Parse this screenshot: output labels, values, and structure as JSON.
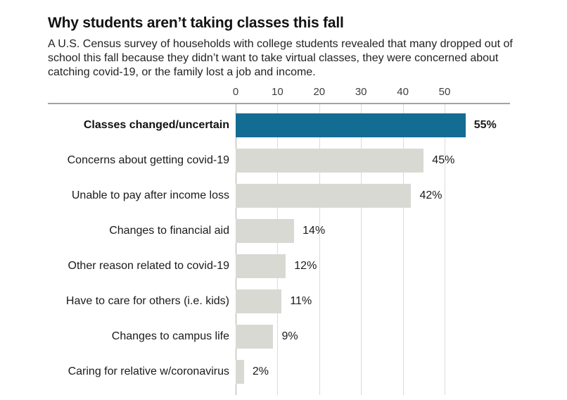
{
  "header": {
    "title": "Why students aren’t taking classes this fall",
    "subtitle": "A U.S. Census survey of households with college students revealed that many dropped out of school this fall because they didn’t want to take virtual classes, they were concerned about catching covid-19, or the family lost a job and income."
  },
  "chart_data": {
    "type": "bar",
    "orientation": "horizontal",
    "title": "Why students aren’t taking classes this fall",
    "categories": [
      "Classes changed/uncertain",
      "Concerns about getting covid-19",
      "Unable to pay after income loss",
      "Changes to financial aid",
      "Other reason related to covid-19",
      "Have to care for others (i.e. kids)",
      "Changes to campus life",
      "Caring for relative w/coronavirus"
    ],
    "values": [
      55,
      45,
      42,
      14,
      12,
      11,
      9,
      2
    ],
    "value_labels": [
      "55%",
      "45%",
      "42%",
      "14%",
      "12%",
      "11%",
      "9%",
      "2%"
    ],
    "highlight_index": 0,
    "axis_ticks": [
      0,
      10,
      20,
      30,
      40,
      50
    ],
    "xlim": [
      0,
      65
    ],
    "grid": true,
    "legend": "none",
    "colors": {
      "highlight_bar": "#136d92",
      "bar": "#d9d9d4",
      "gridline": "#dbdbdb",
      "zero_line": "#adadad",
      "axis_line": "#a3a3a3"
    }
  }
}
